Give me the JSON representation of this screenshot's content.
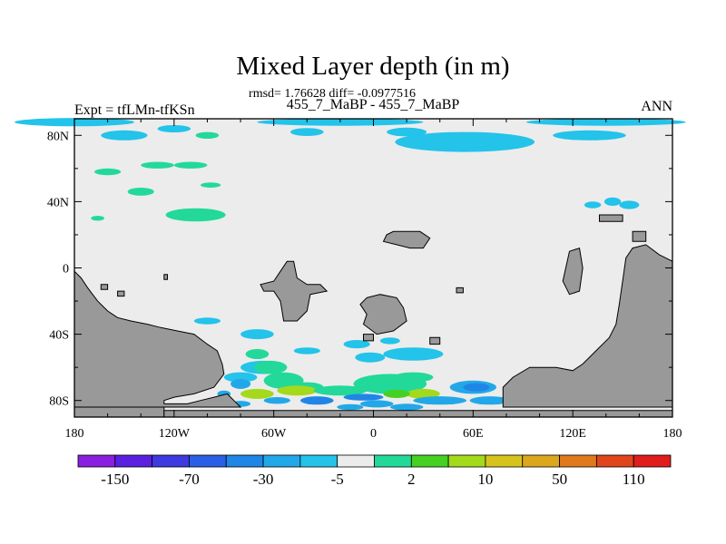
{
  "header": {
    "title": "Mixed Layer depth (in m)",
    "stats": "rmsd= 1.76628 diff= -0.0977516",
    "left_label": "Expt = tfLMn-tfKSn",
    "center_label": "455_7_MaBP - 455_7_MaBP",
    "right_label": "ANN"
  },
  "chart_data": {
    "type": "heatmap",
    "title": "Mixed Layer depth (in m)",
    "subtitle": "rmsd= 1.76628 diff= -0.0977516",
    "x_ticks": [
      "180",
      "120W",
      "60W",
      "0",
      "60E",
      "120E",
      "180"
    ],
    "y_ticks": [
      "80N",
      "40N",
      "0",
      "40S",
      "80S"
    ],
    "xlim": [
      -180,
      180
    ],
    "ylim": [
      -90,
      90
    ],
    "colorbar": {
      "labels": [
        "-150",
        "-70",
        "-30",
        "-5",
        "2",
        "10",
        "50",
        "110"
      ],
      "colors": [
        "#8a1fe0",
        "#5a20e0",
        "#3f3ae0",
        "#2a5fe6",
        "#1f86e6",
        "#22a8e8",
        "#23c3ea",
        "#ececec",
        "#22d99a",
        "#45d023",
        "#a4d91c",
        "#d6c41c",
        "#dca71c",
        "#e0781c",
        "#e0451c",
        "#e01c1c"
      ]
    },
    "land_color": "#999999",
    "ocean_color": "#ececec",
    "regions": [
      {
        "level": "-5",
        "color": "#23c3ea",
        "poly": [
          [
            -178,
            91
          ],
          [
            -140,
            91
          ],
          [
            -140,
            89
          ],
          [
            -178,
            89
          ]
        ]
      },
      {
        "level": "-5",
        "color": "#23c3ea",
        "poly": [
          [
            -178,
            91
          ],
          [
            -140,
            91
          ],
          [
            -140,
            89
          ],
          [
            -178,
            89
          ]
        ]
      },
      {
        "level": "-5",
        "color": "#23c3ea",
        "poly": [
          [
            -178,
            91
          ],
          [
            -140,
            91
          ],
          [
            -140,
            89
          ],
          [
            -178,
            89
          ]
        ]
      },
      {
        "level": "-5",
        "color": "#23c3ea",
        "poly": [
          [
            -178,
            91
          ],
          [
            -140,
            91
          ],
          [
            -140,
            89
          ],
          [
            -178,
            89
          ]
        ]
      }
    ]
  }
}
